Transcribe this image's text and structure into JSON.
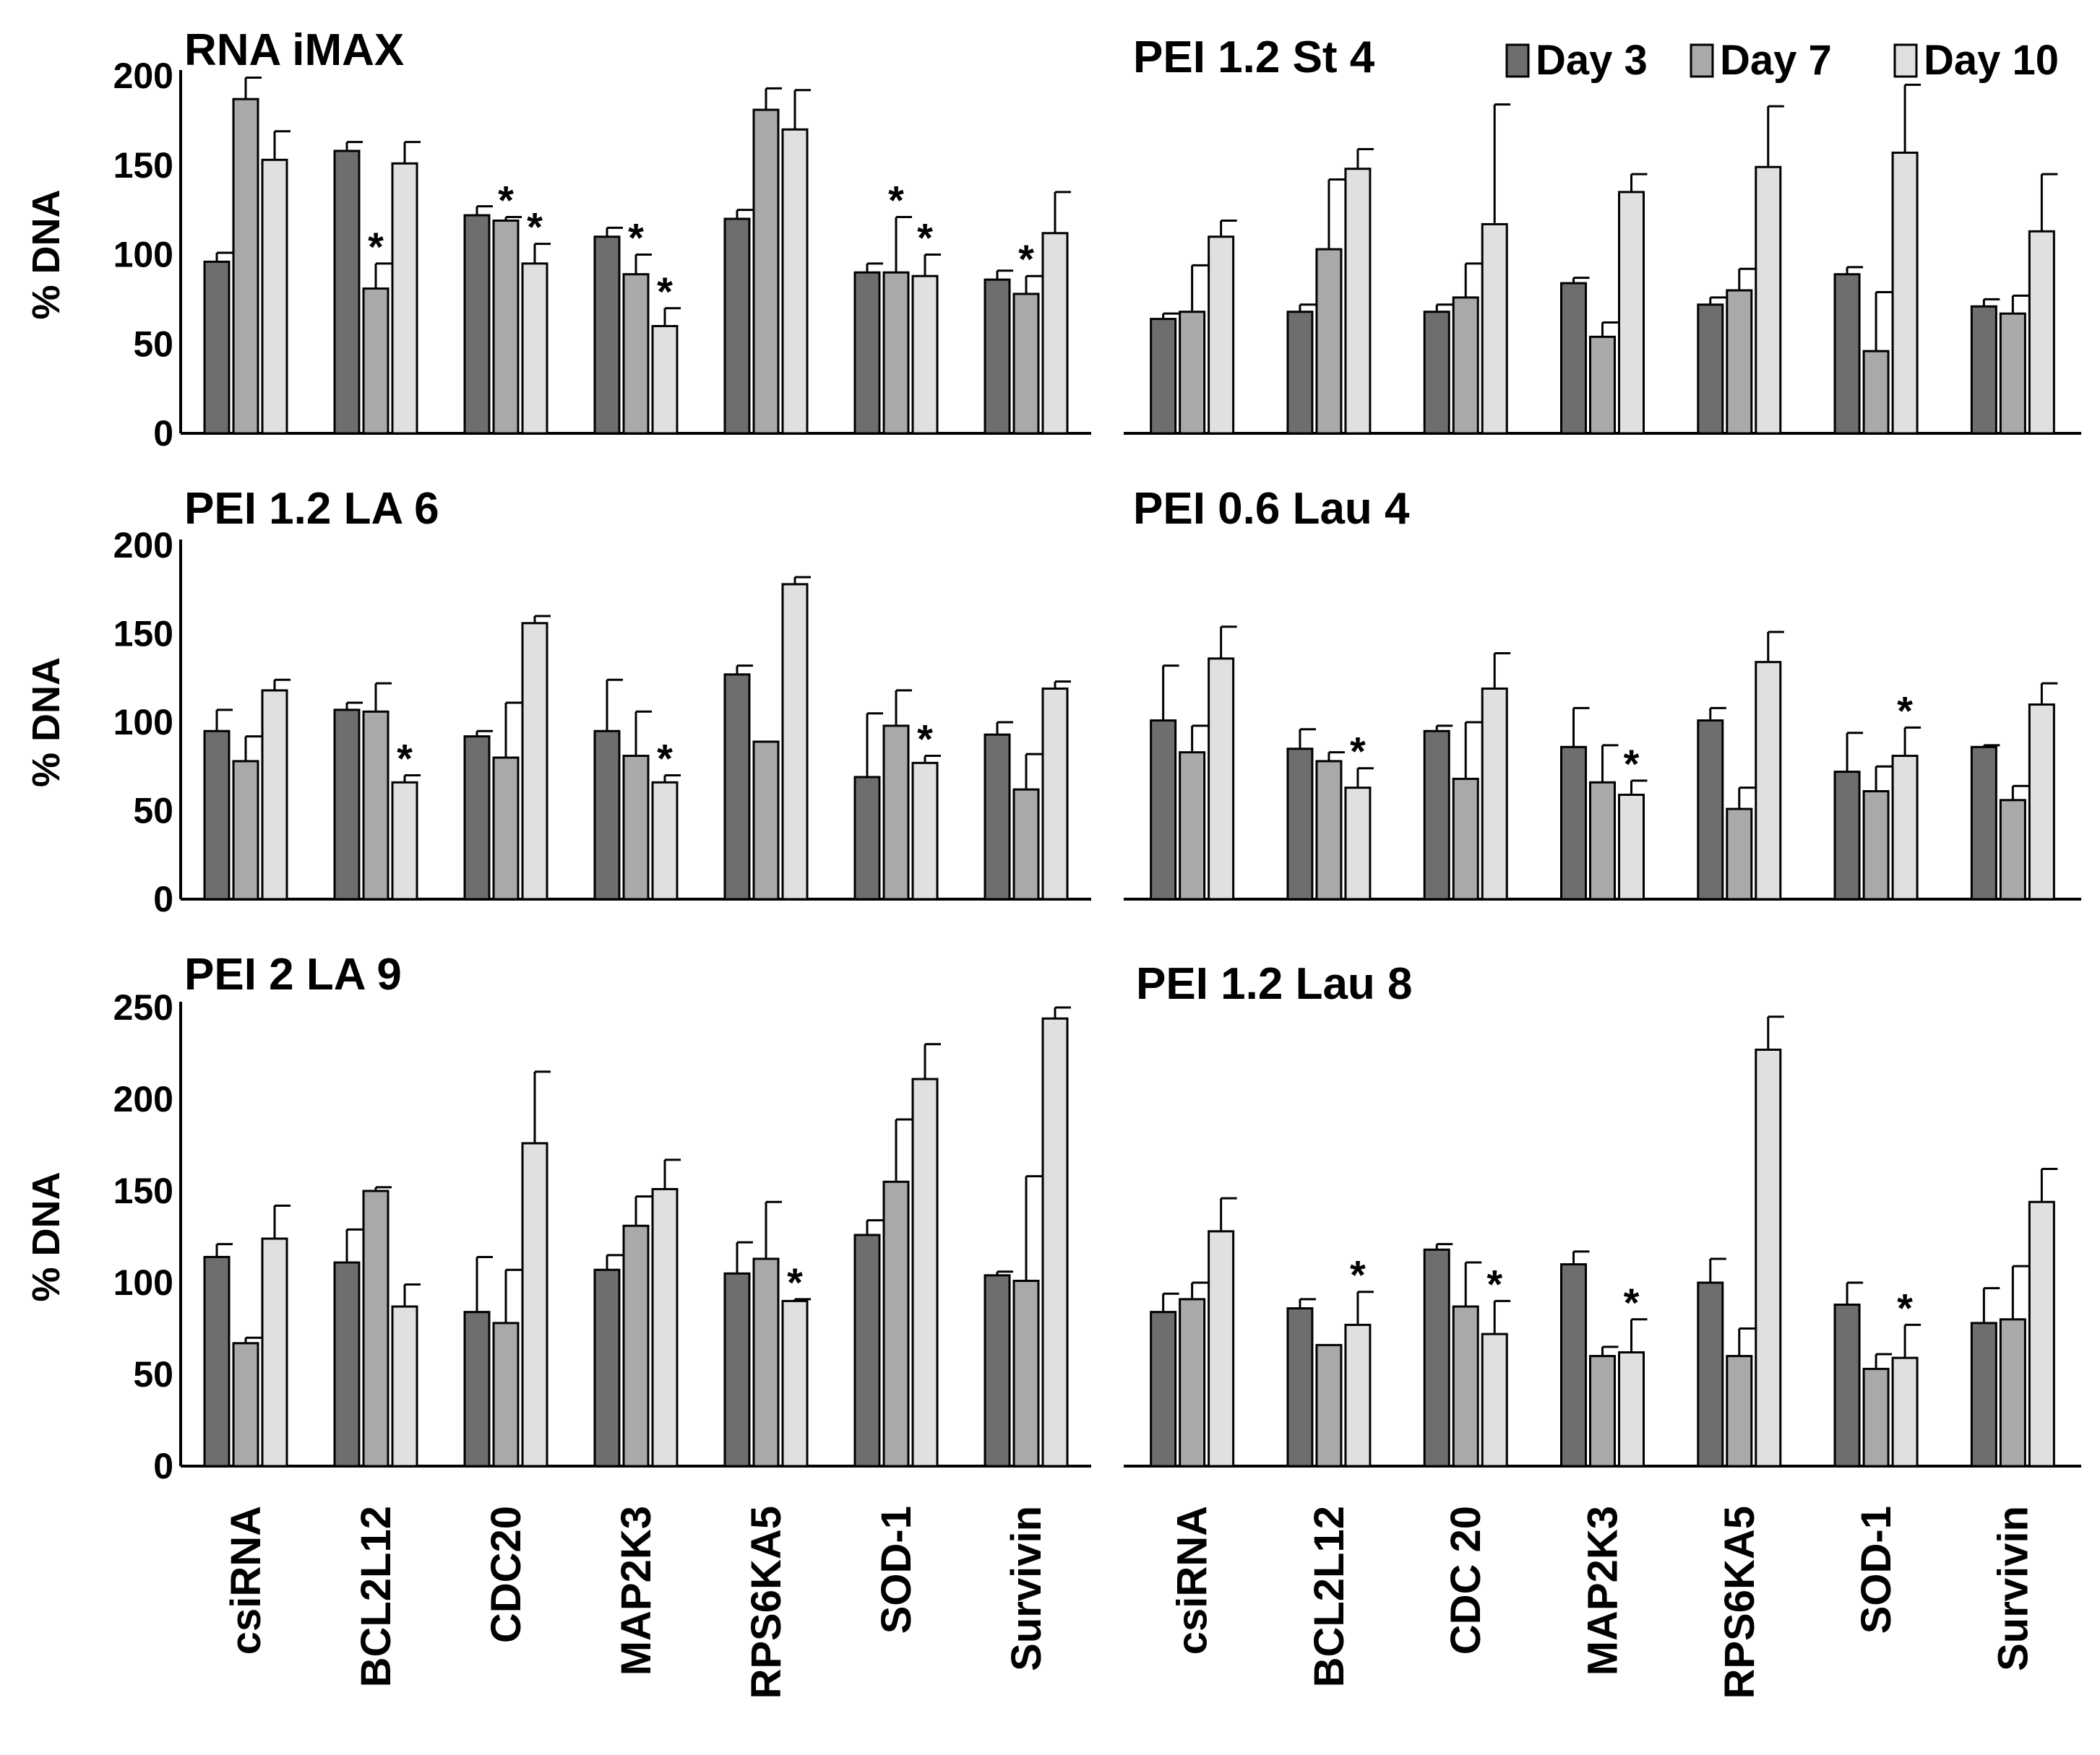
{
  "colors": {
    "day3": "#6e6e6e",
    "day7": "#a9a9a9",
    "day10": "#e0e0e0",
    "axis": "#000000"
  },
  "legend": [
    {
      "label": "Day 3",
      "color_key": "day3"
    },
    {
      "label": "Day 7",
      "color_key": "day7"
    },
    {
      "label": "Day 10",
      "color_key": "day10"
    }
  ],
  "chart_data": [
    {
      "type": "bar",
      "title": "RNA iMAX",
      "ylabel": "% DNA",
      "ylim": [
        0,
        200
      ],
      "yticks": [
        0,
        50,
        100,
        150,
        200
      ],
      "categories": [
        "csiRNA",
        "BCL2L12",
        "CDC20",
        "MAP2K3",
        "RPS6KA5",
        "SOD-1",
        "Survivin"
      ],
      "series": [
        {
          "name": "Day 3",
          "values": [
            96,
            158,
            122,
            110,
            120,
            90,
            86
          ],
          "errors": [
            5,
            5,
            5,
            5,
            5,
            5,
            5
          ],
          "sig": [
            false,
            false,
            false,
            false,
            false,
            false,
            false
          ]
        },
        {
          "name": "Day 7",
          "values": [
            187,
            81,
            119,
            89,
            181,
            90,
            78
          ],
          "errors": [
            12,
            14,
            2,
            11,
            12,
            31,
            10
          ],
          "sig": [
            false,
            true,
            true,
            true,
            false,
            true,
            true
          ]
        },
        {
          "name": "Day 10",
          "values": [
            153,
            151,
            95,
            60,
            170,
            88,
            112
          ],
          "errors": [
            16,
            12,
            11,
            10,
            22,
            12,
            23
          ],
          "sig": [
            false,
            false,
            true,
            true,
            false,
            true,
            false
          ]
        }
      ]
    },
    {
      "type": "bar",
      "title": "PEI 1.2 St 4",
      "ylabel": "",
      "ylim": [
        0,
        200
      ],
      "yticks": [],
      "categories": [
        "csiRNA",
        "BCL2L12",
        "CDC 20",
        "MAP2K3",
        "RPS6KA5",
        "SOD-1",
        "Survivin"
      ],
      "series": [
        {
          "name": "Day 3",
          "values": [
            64,
            68,
            68,
            84,
            72,
            89,
            71
          ],
          "errors": [
            3,
            4,
            4,
            3,
            4,
            4,
            4
          ],
          "sig": [
            false,
            false,
            false,
            false,
            false,
            false,
            false
          ]
        },
        {
          "name": "Day 7",
          "values": [
            68,
            103,
            76,
            54,
            80,
            46,
            67
          ],
          "errors": [
            26,
            39,
            19,
            8,
            12,
            33,
            10
          ],
          "sig": [
            false,
            false,
            false,
            false,
            false,
            false,
            false
          ]
        },
        {
          "name": "Day 10",
          "values": [
            110,
            148,
            117,
            135,
            149,
            157,
            113
          ],
          "errors": [
            9,
            11,
            67,
            10,
            34,
            38,
            32
          ],
          "sig": [
            false,
            false,
            false,
            false,
            false,
            false,
            false
          ]
        }
      ]
    },
    {
      "type": "bar",
      "title": "PEI 1.2 LA 6",
      "ylabel": "% DNA",
      "ylim": [
        0,
        200
      ],
      "yticks": [
        0,
        50,
        100,
        150,
        200
      ],
      "categories": [
        "csiRNA",
        "BCL2L12",
        "CDC20",
        "MAP2K3",
        "RPS6KA5",
        "SOD-1",
        "Survivin"
      ],
      "series": [
        {
          "name": "Day 3",
          "values": [
            95,
            107,
            92,
            95,
            127,
            69,
            93
          ],
          "errors": [
            12,
            4,
            3,
            29,
            5,
            36,
            7
          ],
          "sig": [
            false,
            false,
            false,
            false,
            false,
            false,
            false
          ]
        },
        {
          "name": "Day 7",
          "values": [
            78,
            106,
            80,
            81,
            89,
            98,
            62
          ],
          "errors": [
            14,
            16,
            31,
            25,
            0,
            20,
            20
          ],
          "sig": [
            false,
            false,
            false,
            false,
            false,
            false,
            false
          ]
        },
        {
          "name": "Day 10",
          "values": [
            118,
            66,
            156,
            66,
            178,
            77,
            119
          ],
          "errors": [
            6,
            4,
            4,
            4,
            4,
            4,
            4
          ],
          "sig": [
            false,
            true,
            false,
            true,
            false,
            true,
            false
          ]
        }
      ]
    },
    {
      "type": "bar",
      "title": "PEI 0.6 Lau 4",
      "ylabel": "",
      "ylim": [
        0,
        200
      ],
      "yticks": [],
      "categories": [
        "csiRNA",
        "BCL2L12",
        "CDC 20",
        "MAP2K3",
        "RPS6KA5",
        "SOD-1",
        "Survivin"
      ],
      "series": [
        {
          "name": "Day 3",
          "values": [
            101,
            85,
            95,
            86,
            101,
            72,
            86
          ],
          "errors": [
            31,
            11,
            3,
            22,
            7,
            22,
            1
          ],
          "sig": [
            false,
            false,
            false,
            false,
            false,
            false,
            false
          ]
        },
        {
          "name": "Day 7",
          "values": [
            83,
            78,
            68,
            66,
            51,
            61,
            56
          ],
          "errors": [
            15,
            5,
            32,
            21,
            12,
            14,
            8
          ],
          "sig": [
            false,
            false,
            false,
            false,
            false,
            false,
            false
          ]
        },
        {
          "name": "Day 10",
          "values": [
            136,
            63,
            119,
            59,
            134,
            81,
            110
          ],
          "errors": [
            18,
            11,
            20,
            8,
            17,
            16,
            12
          ],
          "sig": [
            false,
            true,
            false,
            true,
            false,
            true,
            false
          ]
        }
      ]
    },
    {
      "type": "bar",
      "title": "PEI 2 LA 9",
      "ylabel": "% DNA",
      "ylim": [
        0,
        250
      ],
      "yticks": [
        0,
        50,
        100,
        150,
        200,
        250
      ],
      "categories": [
        "csiRNA",
        "BCL2L12",
        "CDC20",
        "MAP2K3",
        "RPS6KA5",
        "SOD-1",
        "Survivin"
      ],
      "series": [
        {
          "name": "Day 3",
          "values": [
            114,
            111,
            84,
            107,
            105,
            126,
            104
          ],
          "errors": [
            7,
            18,
            30,
            8,
            17,
            8,
            2
          ],
          "sig": [
            false,
            false,
            false,
            false,
            false,
            false,
            false
          ]
        },
        {
          "name": "Day 7",
          "values": [
            67,
            150,
            78,
            131,
            113,
            155,
            101
          ],
          "errors": [
            3,
            2,
            29,
            16,
            31,
            34,
            57
          ],
          "sig": [
            false,
            false,
            false,
            false,
            false,
            false,
            false
          ]
        },
        {
          "name": "Day 10",
          "values": [
            124,
            87,
            176,
            151,
            90,
            211,
            244
          ],
          "errors": [
            18,
            12,
            39,
            16,
            1,
            19,
            6
          ],
          "sig": [
            false,
            false,
            false,
            false,
            true,
            false,
            false
          ]
        }
      ]
    },
    {
      "type": "bar",
      "title": "PEI 1.2 Lau 8",
      "ylabel": "",
      "ylim": [
        0,
        250
      ],
      "yticks": [],
      "categories": [
        "csiRNA",
        "BCL2L12",
        "CDC 20",
        "MAP2K3",
        "RPS6KA5",
        "SOD-1",
        "Survivin"
      ],
      "series": [
        {
          "name": "Day 3",
          "values": [
            84,
            86,
            118,
            110,
            100,
            88,
            78
          ],
          "errors": [
            10,
            5,
            3,
            7,
            13,
            12,
            19
          ],
          "sig": [
            false,
            false,
            false,
            false,
            false,
            false,
            false
          ]
        },
        {
          "name": "Day 7",
          "values": [
            91,
            66,
            87,
            60,
            60,
            53,
            80
          ],
          "errors": [
            9,
            0,
            24,
            5,
            15,
            8,
            29
          ],
          "sig": [
            false,
            false,
            false,
            false,
            false,
            false,
            false
          ]
        },
        {
          "name": "Day 10",
          "values": [
            128,
            77,
            72,
            62,
            227,
            59,
            144
          ],
          "errors": [
            18,
            18,
            18,
            18,
            18,
            18,
            18
          ],
          "sig": [
            false,
            true,
            true,
            true,
            false,
            true,
            false
          ]
        }
      ]
    }
  ]
}
